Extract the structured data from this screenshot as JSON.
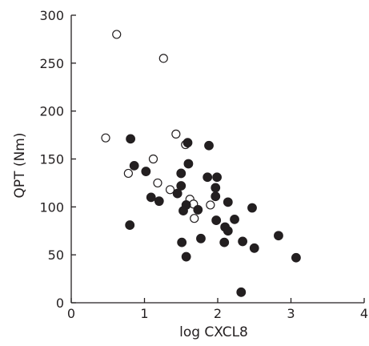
{
  "chart_data": {
    "type": "scatter",
    "title": "",
    "xlabel": "log CXCL8",
    "ylabel": "QPT (Nm)",
    "xlim": [
      0,
      4
    ],
    "ylim": [
      0,
      300
    ],
    "x_ticks": [
      "0",
      "1",
      "2",
      "3",
      "4"
    ],
    "y_ticks": [
      "0",
      "50",
      "100",
      "150",
      "200",
      "250",
      "300"
    ],
    "grid": false,
    "legend": "none",
    "series": [
      {
        "marker": "open-circle",
        "color": "#231f20",
        "points": [
          {
            "x": 0.62,
            "y": 280
          },
          {
            "x": 1.26,
            "y": 255
          },
          {
            "x": 0.47,
            "y": 172
          },
          {
            "x": 1.43,
            "y": 176
          },
          {
            "x": 1.56,
            "y": 165
          },
          {
            "x": 1.12,
            "y": 150
          },
          {
            "x": 0.78,
            "y": 135
          },
          {
            "x": 1.18,
            "y": 125
          },
          {
            "x": 1.35,
            "y": 118
          },
          {
            "x": 1.62,
            "y": 108
          },
          {
            "x": 1.67,
            "y": 103
          },
          {
            "x": 1.9,
            "y": 102
          },
          {
            "x": 1.68,
            "y": 88
          }
        ]
      },
      {
        "marker": "filled-circle",
        "color": "#231f20",
        "points": [
          {
            "x": 0.81,
            "y": 171
          },
          {
            "x": 1.59,
            "y": 167
          },
          {
            "x": 1.88,
            "y": 164
          },
          {
            "x": 0.86,
            "y": 143
          },
          {
            "x": 1.6,
            "y": 145
          },
          {
            "x": 1.02,
            "y": 137
          },
          {
            "x": 1.5,
            "y": 135
          },
          {
            "x": 1.86,
            "y": 131
          },
          {
            "x": 1.99,
            "y": 131
          },
          {
            "x": 1.5,
            "y": 122
          },
          {
            "x": 1.97,
            "y": 120
          },
          {
            "x": 1.45,
            "y": 114
          },
          {
            "x": 1.97,
            "y": 111
          },
          {
            "x": 1.09,
            "y": 110
          },
          {
            "x": 1.2,
            "y": 106
          },
          {
            "x": 2.14,
            "y": 105
          },
          {
            "x": 1.57,
            "y": 102
          },
          {
            "x": 2.47,
            "y": 99
          },
          {
            "x": 1.73,
            "y": 97
          },
          {
            "x": 1.53,
            "y": 96
          },
          {
            "x": 1.98,
            "y": 86
          },
          {
            "x": 2.23,
            "y": 87
          },
          {
            "x": 0.8,
            "y": 81
          },
          {
            "x": 2.1,
            "y": 79
          },
          {
            "x": 2.14,
            "y": 75
          },
          {
            "x": 2.83,
            "y": 70
          },
          {
            "x": 1.77,
            "y": 67
          },
          {
            "x": 2.34,
            "y": 64
          },
          {
            "x": 1.51,
            "y": 63
          },
          {
            "x": 2.09,
            "y": 63
          },
          {
            "x": 2.5,
            "y": 57
          },
          {
            "x": 1.57,
            "y": 48
          },
          {
            "x": 3.07,
            "y": 47
          },
          {
            "x": 2.32,
            "y": 11
          }
        ]
      }
    ]
  }
}
